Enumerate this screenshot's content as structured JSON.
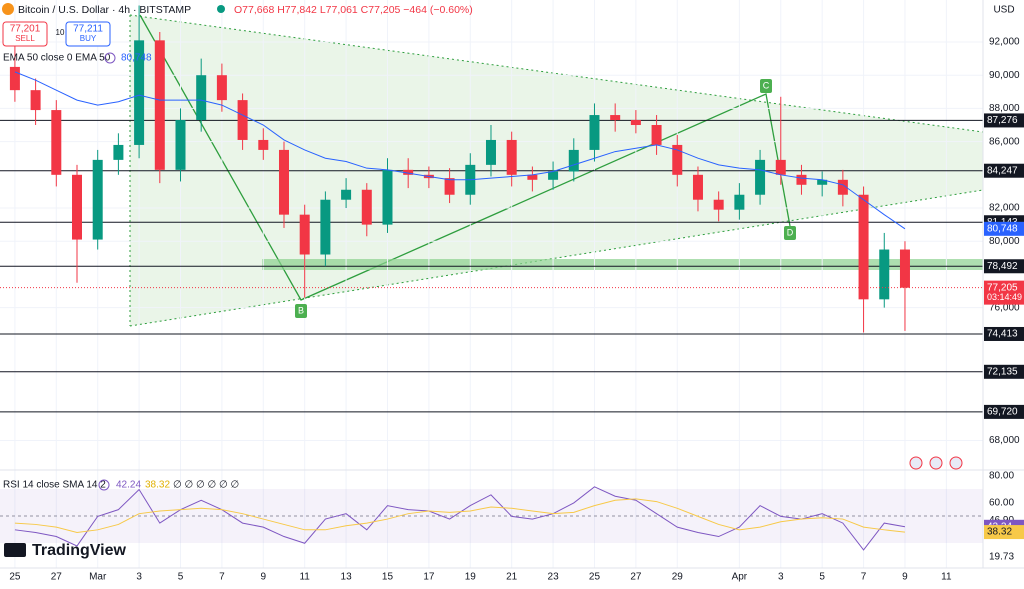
{
  "chart_data": {
    "type": "candlestick",
    "header": {
      "title": "Bitcoin / U.S. Dollar · 4h · BITSTAMP",
      "ohlc": "O77,668 H77,842 L77,061 C77,205 −464 (−0.60%)",
      "sell_price": "77,201",
      "sell": "SELL",
      "spread": "10",
      "buy_price": "77,211",
      "buy": "BUY",
      "ema_legend": "EMA 50 close 0 EMA 50",
      "ema_value": "80,748",
      "currency": "USD",
      "logo": "TradingView"
    },
    "x": [
      0,
      1,
      2,
      3,
      4,
      5,
      6,
      7,
      8,
      9,
      10,
      11,
      12,
      13,
      14,
      15,
      16,
      17,
      18,
      19,
      20,
      21,
      22,
      23,
      24,
      25,
      26,
      27,
      28,
      29,
      30,
      31,
      32,
      33,
      34,
      35,
      36,
      37,
      38,
      39,
      40,
      41,
      42,
      43
    ],
    "open": [
      90500,
      89100,
      87900,
      84000,
      80100,
      84900,
      85800,
      92100,
      84300,
      87300,
      90000,
      88500,
      86100,
      85500,
      81600,
      79200,
      82500,
      83100,
      81000,
      84300,
      84000,
      83800,
      82800,
      84600,
      86100,
      84000,
      83700,
      84200,
      85500,
      87600,
      87300,
      87000,
      85800,
      84000,
      82500,
      81900,
      82800,
      84900,
      84000,
      83400,
      83700,
      82800,
      76500,
      79500
    ],
    "high": [
      91800,
      89800,
      88500,
      84600,
      85500,
      86500,
      94200,
      92600,
      88000,
      91000,
      90700,
      88900,
      86800,
      86000,
      82200,
      83000,
      83800,
      83500,
      85000,
      85000,
      84500,
      84400,
      85300,
      87000,
      86600,
      84500,
      84800,
      86200,
      88300,
      88300,
      87900,
      87600,
      86400,
      84500,
      83000,
      83500,
      85500,
      88700,
      84600,
      84200,
      84300,
      83300,
      80500,
      80000
    ],
    "low": [
      88400,
      87000,
      83300,
      77500,
      79500,
      84000,
      85000,
      83500,
      83600,
      86600,
      87800,
      85500,
      84900,
      80800,
      76600,
      78500,
      82000,
      80300,
      80500,
      83200,
      83200,
      82300,
      82200,
      83900,
      83300,
      83000,
      83100,
      83600,
      84800,
      86600,
      86500,
      85200,
      83300,
      81800,
      81200,
      81300,
      82200,
      83400,
      82800,
      82700,
      82100,
      74500,
      76000,
      74600
    ],
    "close": [
      89100,
      87900,
      84000,
      80100,
      84900,
      85800,
      92100,
      84300,
      87300,
      90000,
      88500,
      86100,
      85500,
      81600,
      79200,
      82500,
      83100,
      81000,
      84300,
      84000,
      83800,
      82800,
      84600,
      86100,
      84000,
      83700,
      84200,
      85500,
      87600,
      87300,
      87000,
      85800,
      84000,
      82500,
      81900,
      82800,
      84900,
      84000,
      83400,
      83700,
      82800,
      76500,
      79500,
      77200
    ],
    "up_color": "#089981",
    "down_color": "#f23645",
    "ema": {
      "name": "EMA 50",
      "color": "#2962ff",
      "values": [
        90200,
        89700,
        89100,
        88500,
        88200,
        88400,
        88800,
        88500,
        88500,
        88500,
        88200,
        87600,
        87000,
        86100,
        85500,
        85000,
        84800,
        84400,
        84300,
        84100,
        83900,
        83700,
        83700,
        83800,
        83900,
        84000,
        84200,
        84600,
        85000,
        85400,
        85600,
        85800,
        85500,
        85000,
        84600,
        84400,
        84300,
        84000,
        83800,
        83700,
        83400,
        82500,
        81600,
        80748
      ]
    },
    "xlim": [
      -0.72,
      46.77
    ],
    "ylim": [
      66220,
      94530
    ],
    "xticks": [
      {
        "value": 0,
        "label": "25"
      },
      {
        "value": 2,
        "label": "27"
      },
      {
        "value": 4,
        "label": "Mar"
      },
      {
        "value": 6,
        "label": "3"
      },
      {
        "value": 8,
        "label": "5"
      },
      {
        "value": 10,
        "label": "7"
      },
      {
        "value": 12,
        "label": "9"
      },
      {
        "value": 14,
        "label": "11"
      },
      {
        "value": 16,
        "label": "13"
      },
      {
        "value": 18,
        "label": "15"
      },
      {
        "value": 20,
        "label": "17"
      },
      {
        "value": 22,
        "label": "19"
      },
      {
        "value": 24,
        "label": "21"
      },
      {
        "value": 26,
        "label": "23"
      },
      {
        "value": 28,
        "label": "25"
      },
      {
        "value": 30,
        "label": "27"
      },
      {
        "value": 32,
        "label": "29"
      },
      {
        "value": 35,
        "label": "Apr"
      },
      {
        "value": 37,
        "label": "3"
      },
      {
        "value": 39,
        "label": "5"
      },
      {
        "value": 41,
        "label": "7"
      },
      {
        "value": 43,
        "label": "9"
      },
      {
        "value": 45,
        "label": "11"
      }
    ],
    "yticks": [
      {
        "value": 92000,
        "label": "92,000"
      },
      {
        "value": 90000,
        "label": "90,000"
      },
      {
        "value": 88000,
        "label": "88,000"
      },
      {
        "value": 86000,
        "label": "86,000"
      },
      {
        "value": 82000,
        "label": "82,000"
      },
      {
        "value": 80000,
        "label": "80,000"
      },
      {
        "value": 76000,
        "label": "76,000"
      },
      {
        "value": 68000,
        "label": "68,000"
      }
    ],
    "levels": [
      {
        "value": 87276,
        "label": "87,276"
      },
      {
        "value": 84247,
        "label": "84,247"
      },
      {
        "value": 81143,
        "label": "81,143"
      },
      {
        "value": 78492,
        "label": "78,492"
      },
      {
        "value": 74413,
        "label": "74,413"
      },
      {
        "value": 72135,
        "label": "72,135"
      },
      {
        "value": 69720,
        "label": "69,720"
      }
    ],
    "last_price": {
      "value": 77205,
      "label": "77,205",
      "countdown": "03:14:49"
    },
    "annotations": [
      "B",
      "C",
      "D"
    ],
    "rsi": {
      "legend": "RSI 14 close SMA 14 2",
      "rsi_label": "42.24",
      "sma_label": "38.32",
      "extra": "∅ ∅ ∅ ∅ ∅ ∅",
      "ylim": [
        10.1,
        84.5
      ],
      "yticks": [
        {
          "value": 80,
          "label": "80.00"
        },
        {
          "value": 60,
          "label": "60.00"
        },
        {
          "value": 46.9,
          "label": "46.90"
        },
        {
          "value": 19.73,
          "label": "19.73"
        }
      ],
      "series": [
        {
          "name": "RSI",
          "color": "#7e57c2",
          "values": [
            40,
            38,
            35,
            28,
            50,
            55,
            70,
            45,
            55,
            62,
            55,
            45,
            42,
            35,
            30,
            48,
            52,
            40,
            58,
            55,
            54,
            48,
            58,
            66,
            50,
            48,
            52,
            60,
            72,
            65,
            62,
            52,
            42,
            38,
            35,
            42,
            58,
            50,
            48,
            52,
            45,
            25,
            45,
            42.24
          ]
        },
        {
          "name": "SMA",
          "color": "#f7c948",
          "values": [
            45,
            44,
            42,
            38,
            40,
            44,
            52,
            54,
            55,
            56,
            55,
            52,
            48,
            44,
            40,
            40,
            43,
            45,
            48,
            52,
            54,
            53,
            54,
            57,
            56,
            54,
            52,
            53,
            58,
            62,
            63,
            61,
            56,
            50,
            44,
            40,
            42,
            46,
            48,
            49,
            48,
            42,
            40,
            38.32
          ]
        }
      ]
    }
  }
}
